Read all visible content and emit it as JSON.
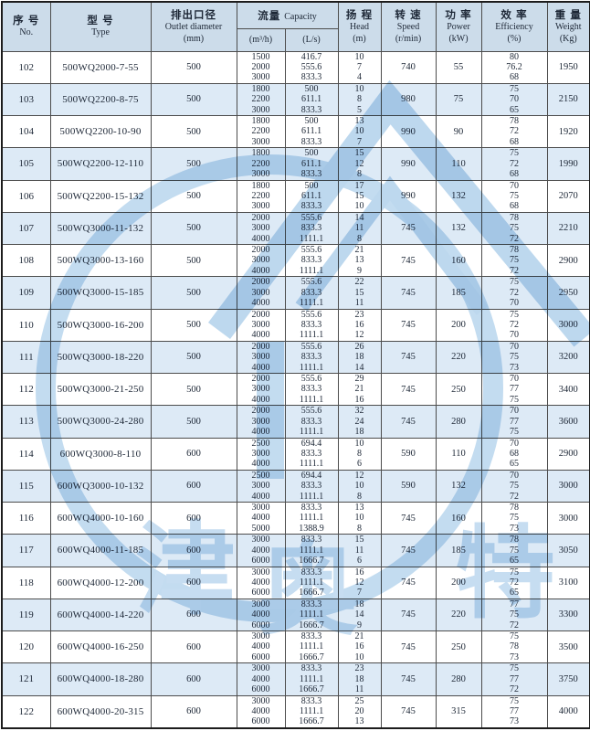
{
  "header": {
    "no_zh": "序 号",
    "no_en": "No.",
    "type_zh": "型 号",
    "type_en": "Type",
    "outlet_zh": "排出口径",
    "outlet_en": "Outlet diameter",
    "outlet_unit": "(mm)",
    "capacity_zh": "流量",
    "capacity_en": "Capacity",
    "capacity_unit1": "(m³/h)",
    "capacity_unit2": "(L/s)",
    "head_zh": "扬 程",
    "head_en": "Head",
    "head_unit": "(m)",
    "speed_zh": "转 速",
    "speed_en": "Speed",
    "speed_unit": "(r/min)",
    "power_zh": "功 率",
    "power_en": "Power",
    "power_unit": "(kW)",
    "eff_zh": "效 率",
    "eff_en": "Efficiency",
    "eff_unit": "(%)",
    "weight_zh": "重 量",
    "weight_en": "Weight",
    "weight_unit": "(Kg)"
  },
  "watermark": {
    "char1": "津",
    "char2": "奥",
    "char3": "特",
    "color": "#bdd8ee"
  },
  "colors": {
    "header_bg": "#ccdcea",
    "alt_row_bg": "#ddeaf6",
    "border": "#4c4c4c",
    "text": "#1d2736",
    "watermark_blue": "#bdd8ee"
  },
  "rows": [
    {
      "no": "102",
      "type": "500WQ2000-7-55",
      "outlet": "500",
      "m3h": [
        "1500",
        "2000",
        "3000"
      ],
      "ls": [
        "416.7",
        "555.6",
        "833.3"
      ],
      "head": [
        "10",
        "7",
        "4"
      ],
      "speed": "740",
      "power": "55",
      "eff": [
        "80",
        "76.2",
        "68"
      ],
      "weight": "1950"
    },
    {
      "no": "103",
      "type": "500WQ2200-8-75",
      "outlet": "500",
      "m3h": [
        "1800",
        "2200",
        "3000"
      ],
      "ls": [
        "500",
        "611.1",
        "833.3"
      ],
      "head": [
        "10",
        "8",
        "5"
      ],
      "speed": "980",
      "power": "75",
      "eff": [
        "75",
        "70",
        "65"
      ],
      "weight": "2150"
    },
    {
      "no": "104",
      "type": "500WQ2200-10-90",
      "outlet": "500",
      "m3h": [
        "1800",
        "2200",
        "3000"
      ],
      "ls": [
        "500",
        "611.1",
        "833.3"
      ],
      "head": [
        "13",
        "10",
        "7"
      ],
      "speed": "990",
      "power": "90",
      "eff": [
        "78",
        "72",
        "68"
      ],
      "weight": "1920"
    },
    {
      "no": "105",
      "type": "500WQ2200-12-110",
      "outlet": "500",
      "m3h": [
        "1800",
        "2200",
        "3000"
      ],
      "ls": [
        "500",
        "611.1",
        "833.3"
      ],
      "head": [
        "15",
        "12",
        "8"
      ],
      "speed": "990",
      "power": "110",
      "eff": [
        "75",
        "72",
        "68"
      ],
      "weight": "1990"
    },
    {
      "no": "106",
      "type": "500WQ2200-15-132",
      "outlet": "500",
      "m3h": [
        "1800",
        "2200",
        "3000"
      ],
      "ls": [
        "500",
        "611.1",
        "833.3"
      ],
      "head": [
        "17",
        "15",
        "10"
      ],
      "speed": "990",
      "power": "132",
      "eff": [
        "70",
        "75",
        "68"
      ],
      "weight": "2070"
    },
    {
      "no": "107",
      "type": "500WQ3000-11-132",
      "outlet": "500",
      "m3h": [
        "2000",
        "3000",
        "4000"
      ],
      "ls": [
        "555.6",
        "833.3",
        "1111.1"
      ],
      "head": [
        "14",
        "11",
        "8"
      ],
      "speed": "745",
      "power": "132",
      "eff": [
        "78",
        "75",
        "72"
      ],
      "weight": "2210"
    },
    {
      "no": "108",
      "type": "500WQ3000-13-160",
      "outlet": "500",
      "m3h": [
        "2000",
        "3000",
        "4000"
      ],
      "ls": [
        "555.6",
        "833.3",
        "1111.1"
      ],
      "head": [
        "21",
        "13",
        "9"
      ],
      "speed": "745",
      "power": "160",
      "eff": [
        "78",
        "75",
        "72"
      ],
      "weight": "2900"
    },
    {
      "no": "109",
      "type": "500WQ3000-15-185",
      "outlet": "500",
      "m3h": [
        "2000",
        "3000",
        "4000"
      ],
      "ls": [
        "555.6",
        "833.3",
        "1111.1"
      ],
      "head": [
        "22",
        "15",
        "11"
      ],
      "speed": "745",
      "power": "185",
      "eff": [
        "75",
        "72",
        "70"
      ],
      "weight": "2950"
    },
    {
      "no": "110",
      "type": "500WQ3000-16-200",
      "outlet": "500",
      "m3h": [
        "2000",
        "3000",
        "4000"
      ],
      "ls": [
        "555.6",
        "833.3",
        "1111.1"
      ],
      "head": [
        "23",
        "16",
        "12"
      ],
      "speed": "745",
      "power": "200",
      "eff": [
        "75",
        "72",
        "70"
      ],
      "weight": "3000"
    },
    {
      "no": "111",
      "type": "500WQ3000-18-220",
      "outlet": "500",
      "m3h": [
        "2000",
        "3000",
        "4000"
      ],
      "ls": [
        "555.6",
        "833.3",
        "1111.1"
      ],
      "head": [
        "26",
        "18",
        "14"
      ],
      "speed": "745",
      "power": "220",
      "eff": [
        "70",
        "75",
        "73"
      ],
      "weight": "3200"
    },
    {
      "no": "112",
      "type": "500WQ3000-21-250",
      "outlet": "500",
      "m3h": [
        "2000",
        "3000",
        "4000"
      ],
      "ls": [
        "555.6",
        "833.3",
        "1111.1"
      ],
      "head": [
        "29",
        "21",
        "16"
      ],
      "speed": "745",
      "power": "250",
      "eff": [
        "70",
        "77",
        "75"
      ],
      "weight": "3400"
    },
    {
      "no": "113",
      "type": "500WQ3000-24-280",
      "outlet": "500",
      "m3h": [
        "2000",
        "3000",
        "4000"
      ],
      "ls": [
        "555.6",
        "833.3",
        "1111.1"
      ],
      "head": [
        "32",
        "24",
        "18"
      ],
      "speed": "745",
      "power": "280",
      "eff": [
        "70",
        "77",
        "75"
      ],
      "weight": "3600"
    },
    {
      "no": "114",
      "type": "600WQ3000-8-110",
      "outlet": "600",
      "m3h": [
        "2500",
        "3000",
        "4000"
      ],
      "ls": [
        "694.4",
        "833.3",
        "1111.1"
      ],
      "head": [
        "10",
        "8",
        "6"
      ],
      "speed": "590",
      "power": "110",
      "eff": [
        "70",
        "68",
        "65"
      ],
      "weight": "2900"
    },
    {
      "no": "115",
      "type": "600WQ3000-10-132",
      "outlet": "600",
      "m3h": [
        "2500",
        "3000",
        "4000"
      ],
      "ls": [
        "694.4",
        "833.3",
        "1111.1"
      ],
      "head": [
        "12",
        "10",
        "8"
      ],
      "speed": "590",
      "power": "132",
      "eff": [
        "70",
        "75",
        "72"
      ],
      "weight": "3000"
    },
    {
      "no": "116",
      "type": "600WQ4000-10-160",
      "outlet": "600",
      "m3h": [
        "3000",
        "4000",
        "5000"
      ],
      "ls": [
        "833.3",
        "1111.1",
        "1388.9"
      ],
      "head": [
        "13",
        "10",
        "8"
      ],
      "speed": "745",
      "power": "160",
      "eff": [
        "78",
        "75",
        "73"
      ],
      "weight": "3000"
    },
    {
      "no": "117",
      "type": "600WQ4000-11-185",
      "outlet": "600",
      "m3h": [
        "3000",
        "4000",
        "6000"
      ],
      "ls": [
        "833.3",
        "1111.1",
        "1666.7"
      ],
      "head": [
        "15",
        "11",
        "6"
      ],
      "speed": "745",
      "power": "185",
      "eff": [
        "78",
        "75",
        "65"
      ],
      "weight": "3050"
    },
    {
      "no": "118",
      "type": "600WQ4000-12-200",
      "outlet": "600",
      "m3h": [
        "3000",
        "4000",
        "6000"
      ],
      "ls": [
        "833.3",
        "1111.1",
        "1666.7"
      ],
      "head": [
        "16",
        "12",
        "7"
      ],
      "speed": "745",
      "power": "200",
      "eff": [
        "75",
        "72",
        "65"
      ],
      "weight": "3100"
    },
    {
      "no": "119",
      "type": "600WQ4000-14-220",
      "outlet": "600",
      "m3h": [
        "3000",
        "4000",
        "6000"
      ],
      "ls": [
        "833.3",
        "1111.1",
        "1666.7"
      ],
      "head": [
        "18",
        "14",
        "9"
      ],
      "speed": "745",
      "power": "220",
      "eff": [
        "77",
        "75",
        "72"
      ],
      "weight": "3300"
    },
    {
      "no": "120",
      "type": "600WQ4000-16-250",
      "outlet": "600",
      "m3h": [
        "3000",
        "4000",
        "6000"
      ],
      "ls": [
        "833.3",
        "1111.1",
        "1666.7"
      ],
      "head": [
        "21",
        "16",
        "10"
      ],
      "speed": "745",
      "power": "250",
      "eff": [
        "75",
        "78",
        "73"
      ],
      "weight": "3500"
    },
    {
      "no": "121",
      "type": "600WQ4000-18-280",
      "outlet": "600",
      "m3h": [
        "3000",
        "4000",
        "6000"
      ],
      "ls": [
        "833.3",
        "1111.1",
        "1666.7"
      ],
      "head": [
        "23",
        "18",
        "11"
      ],
      "speed": "745",
      "power": "280",
      "eff": [
        "75",
        "77",
        "72"
      ],
      "weight": "3750"
    },
    {
      "no": "122",
      "type": "600WQ4000-20-315",
      "outlet": "600",
      "m3h": [
        "3000",
        "4000",
        "6000"
      ],
      "ls": [
        "833.3",
        "1111.1",
        "1666.7"
      ],
      "head": [
        "25",
        "20",
        "13"
      ],
      "speed": "745",
      "power": "315",
      "eff": [
        "75",
        "77",
        "73"
      ],
      "weight": "4000"
    }
  ]
}
